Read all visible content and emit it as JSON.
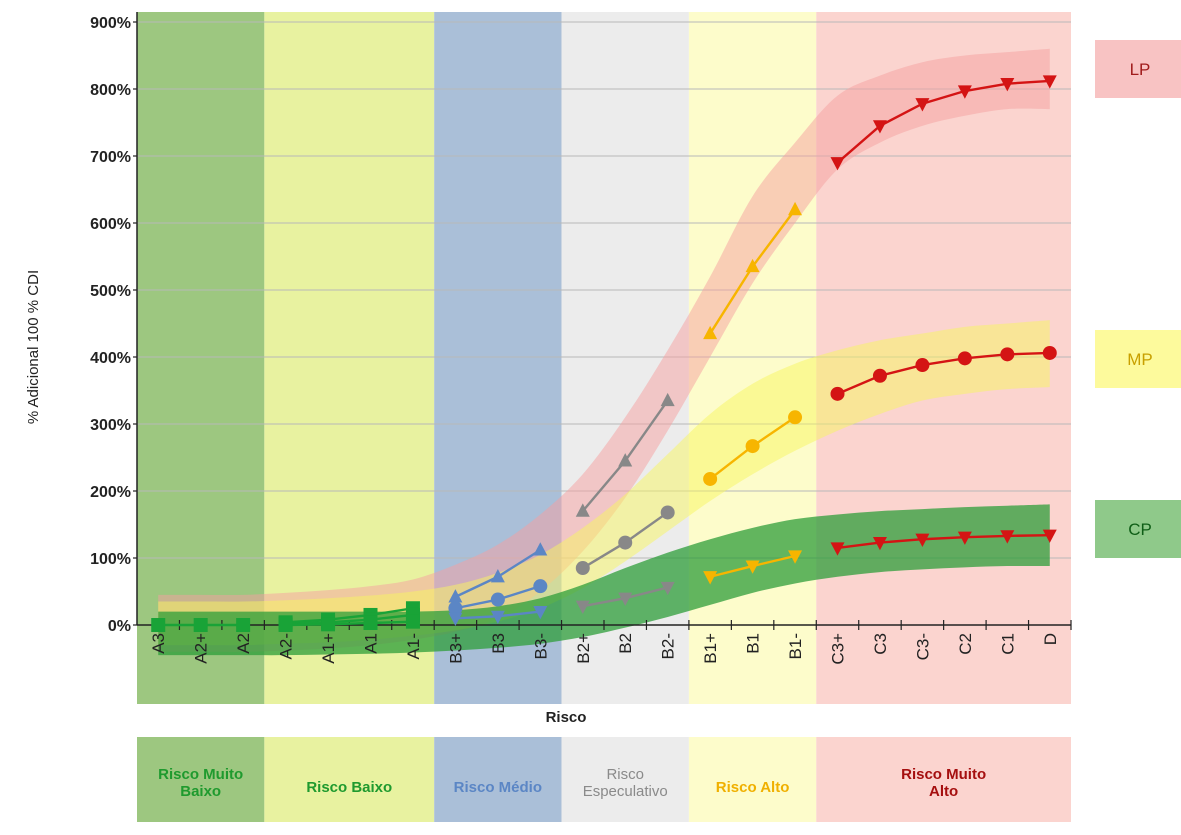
{
  "chart_data": {
    "type": "line",
    "ylabel": "% Adicional 100 % CDI",
    "xlabel": "Risco",
    "ylim": [
      0,
      900
    ],
    "yticks": [
      0,
      100,
      200,
      300,
      400,
      500,
      600,
      700,
      800,
      900
    ],
    "ytick_labels": [
      "0%",
      "100%",
      "200%",
      "300%",
      "400%",
      "500%",
      "600%",
      "700%",
      "800%",
      "900%"
    ],
    "grid": "horizontal",
    "categories": [
      "A3",
      "A2+",
      "A2",
      "A2-",
      "A1+",
      "A1",
      "A1-",
      "B3+",
      "B3",
      "B3-",
      "B2+",
      "B2",
      "B2-",
      "B1+",
      "B1",
      "B1-",
      "C3+",
      "C3",
      "C3-",
      "C2",
      "C1",
      "D"
    ],
    "risk_zones": [
      {
        "label": "Risco Muito Baixo",
        "start": "A3",
        "end": "A2",
        "fill": "#9dc780",
        "text_color": "#1f9a2e"
      },
      {
        "label": "Risco Baixo",
        "start": "A2-",
        "end": "A1-",
        "fill": "#e8f2a0",
        "text_color": "#1f9a2e"
      },
      {
        "label": "Risco Médio",
        "start": "B3+",
        "end": "B3-",
        "fill": "#aabfd8",
        "text_color": "#5b86c5"
      },
      {
        "label": "Risco Especulativo",
        "start": "B2+",
        "end": "B2-",
        "fill": "#ececec",
        "text_color": "#8a8a8a"
      },
      {
        "label": "Risco Alto",
        "start": "B1+",
        "end": "B1-",
        "fill": "#fdfccb",
        "text_color": "#f0b000"
      },
      {
        "label": "Risco Muito Alto",
        "start": "C3+",
        "end": "D",
        "fill": "#fbd4cf",
        "text_color": "#a50f0f"
      }
    ],
    "band_legend": [
      {
        "label": "LP",
        "fill": "#f8c3c3"
      },
      {
        "label": "MP",
        "fill": "#fdfa9c"
      },
      {
        "label": "CP",
        "fill": "#8fc98a"
      }
    ],
    "bands": [
      {
        "name": "LP",
        "fill": "#f5a0a0",
        "opacity": 0.5,
        "upper": [
          45,
          45,
          45,
          48,
          52,
          58,
          68,
          90,
          120,
          165,
          225,
          310,
          410,
          520,
          640,
          720,
          790,
          820,
          840,
          850,
          855,
          860
        ],
        "lower": [
          -40,
          -40,
          -40,
          -38,
          -35,
          -30,
          -22,
          -10,
          10,
          50,
          110,
          190,
          290,
          400,
          510,
          600,
          680,
          720,
          745,
          760,
          770,
          770
        ]
      },
      {
        "name": "MP",
        "fill": "#f8f560",
        "opacity": 0.5,
        "upper": [
          35,
          35,
          35,
          37,
          40,
          44,
          50,
          60,
          78,
          105,
          145,
          195,
          255,
          315,
          360,
          390,
          410,
          425,
          435,
          445,
          450,
          455
        ],
        "lower": [
          -30,
          -30,
          -30,
          -28,
          -26,
          -22,
          -16,
          -8,
          5,
          25,
          55,
          95,
          140,
          185,
          225,
          260,
          290,
          315,
          335,
          345,
          352,
          355
        ]
      },
      {
        "name": "CP",
        "fill": "#2e9e3a",
        "opacity": 0.75,
        "upper": [
          20,
          20,
          20,
          20,
          20,
          20,
          20,
          22,
          28,
          40,
          60,
          85,
          108,
          128,
          145,
          158,
          165,
          170,
          173,
          176,
          178,
          180
        ],
        "lower": [
          -45,
          -45,
          -45,
          -45,
          -44,
          -43,
          -41,
          -38,
          -34,
          -28,
          -18,
          -4,
          12,
          30,
          48,
          62,
          72,
          79,
          83,
          86,
          88,
          88
        ]
      }
    ],
    "series": [
      {
        "zone": "Risco Muito Baixo",
        "marker": "square",
        "color": "#19a337",
        "lines": [
          {
            "x": [
              "A3",
              "A2+",
              "A2"
            ],
            "y": [
              0,
              0,
              0
            ]
          }
        ]
      },
      {
        "zone": "Risco Baixo",
        "marker": "square",
        "color": "#19a337",
        "lines": [
          {
            "x": [
              "A2-",
              "A1+",
              "A1",
              "A1-"
            ],
            "y": [
              4,
              8,
              15,
              25
            ]
          },
          {
            "x": [
              "A2-",
              "A1+",
              "A1",
              "A1-"
            ],
            "y": [
              2,
              4,
              8,
              15
            ]
          },
          {
            "x": [
              "A2-",
              "A1+",
              "A1",
              "A1-"
            ],
            "y": [
              0,
              1,
              3,
              5
            ]
          }
        ]
      },
      {
        "zone": "Risco Médio",
        "color": "#5b86c5",
        "lines": [
          {
            "marker": "triangle-up",
            "x": [
              "B3+",
              "B3",
              "B3-"
            ],
            "y": [
              42,
              72,
              112
            ]
          },
          {
            "marker": "circle",
            "x": [
              "B3+",
              "B3",
              "B3-"
            ],
            "y": [
              25,
              38,
              58
            ]
          },
          {
            "marker": "triangle-down",
            "x": [
              "B3+",
              "B3",
              "B3-"
            ],
            "y": [
              10,
              13,
              20
            ]
          }
        ]
      },
      {
        "zone": "Risco Especulativo",
        "color": "#888888",
        "lines": [
          {
            "marker": "triangle-up",
            "x": [
              "B2+",
              "B2",
              "B2-"
            ],
            "y": [
              170,
              245,
              335
            ]
          },
          {
            "marker": "circle",
            "x": [
              "B2+",
              "B2",
              "B2-"
            ],
            "y": [
              85,
              123,
              168
            ]
          },
          {
            "marker": "triangle-down",
            "x": [
              "B2+",
              "B2",
              "B2-"
            ],
            "y": [
              28,
              40,
              56
            ]
          }
        ]
      },
      {
        "zone": "Risco Alto",
        "color": "#f7b500",
        "lines": [
          {
            "marker": "triangle-up",
            "x": [
              "B1+",
              "B1",
              "B1-"
            ],
            "y": [
              435,
              535,
              620
            ]
          },
          {
            "marker": "circle",
            "x": [
              "B1+",
              "B1",
              "B1-"
            ],
            "y": [
              218,
              267,
              310
            ]
          },
          {
            "marker": "triangle-down",
            "x": [
              "B1+",
              "B1",
              "B1-"
            ],
            "y": [
              72,
              88,
              103
            ]
          }
        ]
      },
      {
        "zone": "Risco Muito Alto",
        "color": "#d41414",
        "lines": [
          {
            "marker": "triangle-down",
            "x": [
              "C3+",
              "C3",
              "C3-",
              "C2",
              "C1",
              "D"
            ],
            "y": [
              690,
              745,
              778,
              797,
              808,
              812
            ]
          },
          {
            "marker": "circle",
            "x": [
              "C3+",
              "C3",
              "C3-",
              "C2",
              "C1",
              "D"
            ],
            "y": [
              345,
              372,
              388,
              398,
              404,
              406
            ]
          },
          {
            "marker": "triangle-down",
            "x": [
              "C3+",
              "C3",
              "C3-",
              "C2",
              "C1",
              "D"
            ],
            "y": [
              115,
              123,
              128,
              131,
              133,
              134
            ]
          }
        ]
      }
    ]
  }
}
